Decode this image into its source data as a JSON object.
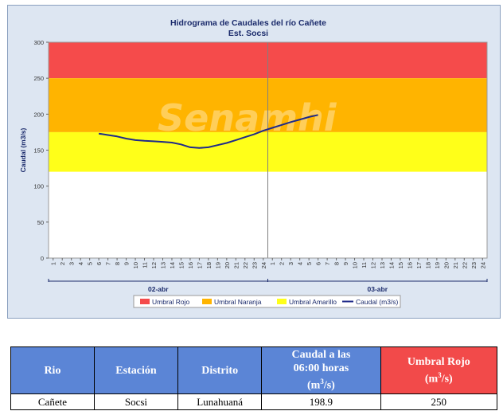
{
  "chart_data": {
    "type": "line",
    "title": "Hidrograma de Caudales  del río Cañete",
    "subtitle": "Est. Socsi",
    "ylabel": "Caudal  (m3/s)",
    "ylim": [
      0,
      300
    ],
    "yticks": [
      0,
      50,
      100,
      150,
      200,
      250,
      300
    ],
    "x_hours_labels": [
      "1",
      "2",
      "3",
      "4",
      "5",
      "6",
      "7",
      "8",
      "9",
      "10",
      "11",
      "12",
      "13",
      "14",
      "15",
      "16",
      "17",
      "18",
      "19",
      "20",
      "21",
      "22",
      "23",
      "24",
      "1",
      "2",
      "3",
      "4",
      "5",
      "6",
      "7",
      "8",
      "9",
      "10",
      "11",
      "12",
      "13",
      "14",
      "15",
      "16",
      "17",
      "18",
      "19",
      "20",
      "21",
      "22",
      "23",
      "24"
    ],
    "days": [
      "02-abr",
      "03-abr"
    ],
    "bands": [
      {
        "name": "Umbral Rojo",
        "from": 250,
        "to": 300,
        "color": "#f54b4b"
      },
      {
        "name": "Umbral Naranja",
        "from": 175,
        "to": 250,
        "color": "#ffb400"
      },
      {
        "name": "Umbral Amarillo",
        "from": 120,
        "to": 175,
        "color": "#ffff19"
      }
    ],
    "series": [
      {
        "name": "Caudal (m3/s)",
        "color": "#1f2a8a",
        "x": [
          6,
          7,
          8,
          9,
          10,
          11,
          12,
          13,
          14,
          15,
          16,
          17,
          18,
          19,
          20,
          21,
          22,
          23,
          24,
          25,
          26,
          27,
          28,
          29,
          30
        ],
        "values": [
          173,
          171,
          169,
          166,
          164,
          163,
          162.3,
          161.5,
          160.5,
          158,
          154,
          153,
          154,
          157,
          160,
          164,
          168,
          172,
          177,
          181,
          185,
          189,
          192.5,
          196,
          198.9
        ]
      }
    ],
    "legend_position": "bottom",
    "grid": false
  },
  "watermark": "Senamhi",
  "table": {
    "headers": {
      "rio": "Rio",
      "estacion": "Estación",
      "distrito": "Distrito",
      "caudal_line1": "Caudal a las",
      "caudal_line2": "06:00 horas",
      "caudal_unit_open": "(m",
      "caudal_unit_sup": "3",
      "caudal_unit_close": "/s)",
      "umbral_line1": "Umbral Rojo",
      "umbral_unit_open": "(m",
      "umbral_unit_sup": "3",
      "umbral_unit_close": "/s)"
    },
    "row": {
      "rio": "Cañete",
      "estacion": "Socsi",
      "distrito": "Lunahuaná",
      "caudal": "198.9",
      "umbral": "250"
    }
  }
}
